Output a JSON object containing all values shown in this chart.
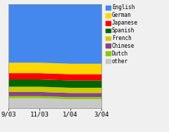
{
  "x_labels": [
    "9/03",
    "11/03",
    "1/04",
    "3/04"
  ],
  "x_values": [
    0,
    1,
    2,
    3
  ],
  "languages": [
    "English",
    "German",
    "Japanese",
    "Spanish",
    "French",
    "Chinese",
    "Dutch",
    "other"
  ],
  "colors": [
    "#4488EE",
    "#FFD700",
    "#FF0000",
    "#006600",
    "#CCCC00",
    "#884488",
    "#88CC00",
    "#C8C8C8"
  ],
  "data": {
    "English": [
      56,
      56,
      57,
      57
    ],
    "German": [
      10,
      10,
      10,
      10
    ],
    "Japanese": [
      6,
      6,
      6,
      6
    ],
    "Spanish": [
      7,
      7,
      7,
      7
    ],
    "French": [
      5,
      5,
      5,
      5
    ],
    "Chinese": [
      4,
      4,
      4,
      4
    ],
    "Dutch": [
      2,
      2,
      2,
      2
    ],
    "other": [
      10,
      10,
      9,
      9
    ]
  },
  "ylim": [
    0,
    100
  ],
  "figsize": [
    2.4,
    1.88
  ],
  "dpi": 100,
  "background_color": "#f0f0f0",
  "plot_bg": "#f0f0f0",
  "legend_fontsize": 5.5,
  "tick_fontsize": 6.5,
  "spine_color": "#888888"
}
